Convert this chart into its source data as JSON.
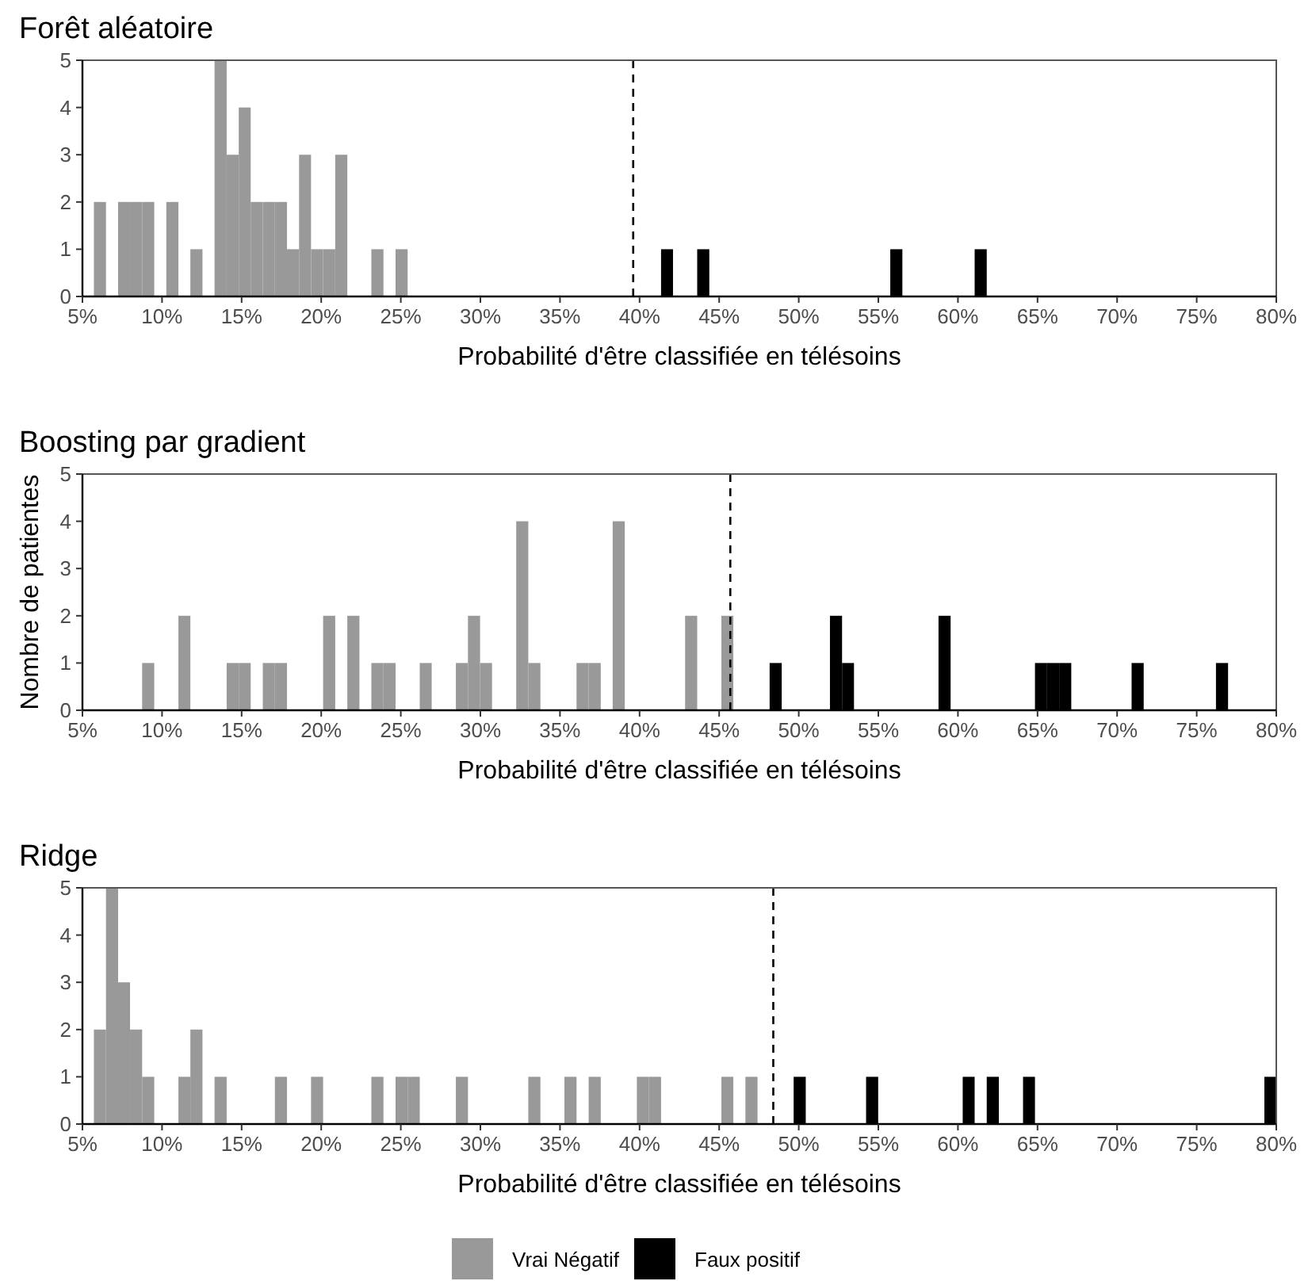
{
  "chart_data": [
    {
      "type": "histogram",
      "title": "Forêt aléatoire",
      "xlabel": "Probabilité d'être classifiée en télésoins",
      "bins": [
        5.72,
        6.48,
        7.24,
        7.99,
        8.75,
        9.51,
        10.27,
        11.03,
        11.78,
        12.54,
        13.3,
        14.06,
        14.82,
        15.57,
        16.33,
        17.09,
        17.85,
        18.61,
        19.36,
        20.12,
        20.88,
        21.64,
        22.4,
        23.15,
        23.91,
        24.67,
        25.43,
        26.19,
        26.94,
        27.7,
        28.46,
        29.22,
        29.98,
        30.73,
        31.49,
        32.25,
        33.01,
        33.77,
        34.52,
        35.28,
        36.04,
        36.8,
        37.56,
        38.31,
        39.07,
        39.83,
        40.59,
        41.35,
        42.1,
        42.86,
        43.62,
        44.38,
        45.14,
        45.89,
        46.65,
        47.41,
        48.17,
        48.93,
        49.68,
        50.44,
        51.2,
        51.96,
        52.72,
        53.47,
        54.23,
        54.99,
        55.75,
        56.51,
        57.26,
        58.02,
        58.78,
        59.54,
        60.3,
        61.05,
        61.81,
        62.57,
        63.33,
        64.09,
        64.84,
        65.6,
        66.36,
        67.12,
        67.88,
        68.63,
        69.39,
        70.15,
        70.91,
        71.67,
        72.42,
        73.18,
        73.94,
        74.7,
        75.46,
        76.21,
        76.97,
        77.73,
        78.49,
        79.25,
        80.0
      ],
      "series": [
        {
          "color": "#999999",
          "values": [
            2,
            0,
            2,
            2,
            2,
            0,
            2,
            0,
            1,
            0,
            5,
            3,
            4,
            2,
            2,
            2,
            1,
            3,
            1,
            1,
            3,
            0,
            0,
            1,
            0,
            1,
            0,
            0,
            0,
            0,
            0,
            0,
            0,
            0,
            0,
            0,
            0,
            0,
            0,
            0,
            0,
            0,
            0,
            0,
            0,
            0,
            0,
            0,
            0,
            0,
            0,
            0,
            0,
            0,
            0,
            0,
            0,
            0,
            0,
            0,
            0,
            0,
            0,
            0,
            0,
            0,
            0,
            0,
            0,
            0,
            0,
            0,
            0,
            0,
            0,
            0,
            0,
            0,
            0,
            0,
            0,
            0,
            0,
            0,
            0,
            0,
            0,
            0,
            0,
            0,
            0,
            0,
            0,
            0,
            0,
            0,
            0,
            0
          ]
        },
        {
          "color": "#000000",
          "values": [
            0,
            0,
            0,
            0,
            0,
            0,
            0,
            0,
            0,
            0,
            0,
            0,
            0,
            0,
            0,
            0,
            0,
            0,
            0,
            0,
            0,
            0,
            0,
            0,
            0,
            0,
            0,
            0,
            0,
            0,
            0,
            0,
            0,
            0,
            0,
            0,
            0,
            0,
            0,
            0,
            0,
            0,
            0,
            0,
            0,
            0,
            0,
            1,
            0,
            0,
            1,
            0,
            0,
            0,
            0,
            0,
            0,
            0,
            0,
            0,
            0,
            0,
            0,
            0,
            0,
            0,
            1,
            0,
            0,
            0,
            0,
            0,
            0,
            1,
            0,
            0,
            0,
            0,
            0,
            0,
            0,
            0,
            0,
            0,
            0,
            0,
            0,
            0,
            0,
            0,
            0,
            0,
            0,
            0,
            0,
            0,
            0,
            0
          ]
        }
      ],
      "xlim": [
        5,
        80
      ],
      "xticks": [
        {
          "value": 5,
          "label": "5%"
        },
        {
          "value": 10,
          "label": "10%"
        },
        {
          "value": 15,
          "label": "15%"
        },
        {
          "value": 20,
          "label": "20%"
        },
        {
          "value": 25,
          "label": "25%"
        },
        {
          "value": 30,
          "label": "30%"
        },
        {
          "value": 35,
          "label": "35%"
        },
        {
          "value": 40,
          "label": "40%"
        },
        {
          "value": 45,
          "label": "45%"
        },
        {
          "value": 50,
          "label": "50%"
        },
        {
          "value": 55,
          "label": "55%"
        },
        {
          "value": 60,
          "label": "60%"
        },
        {
          "value": 65,
          "label": "65%"
        },
        {
          "value": 70,
          "label": "70%"
        },
        {
          "value": 75,
          "label": "75%"
        },
        {
          "value": 80,
          "label": "80%"
        }
      ],
      "ylim": [
        0,
        5
      ],
      "yticks": [
        0,
        1,
        2,
        3,
        4,
        5
      ],
      "ref_lines": [
        {
          "axis": "x",
          "value": 39.6,
          "color": "#000000",
          "line_style": "dashed"
        }
      ],
      "grid": false,
      "legend": false
    },
    {
      "type": "histogram",
      "title": "Boosting par gradient",
      "xlabel": "Probabilité d'être classifiée en télésoins",
      "ylabel": "Nombre de patientes",
      "bins": [
        5.72,
        6.48,
        7.24,
        7.99,
        8.75,
        9.51,
        10.27,
        11.03,
        11.78,
        12.54,
        13.3,
        14.06,
        14.82,
        15.57,
        16.33,
        17.09,
        17.85,
        18.61,
        19.36,
        20.12,
        20.88,
        21.64,
        22.4,
        23.15,
        23.91,
        24.67,
        25.43,
        26.19,
        26.94,
        27.7,
        28.46,
        29.22,
        29.98,
        30.73,
        31.49,
        32.25,
        33.01,
        33.77,
        34.52,
        35.28,
        36.04,
        36.8,
        37.56,
        38.31,
        39.07,
        39.83,
        40.59,
        41.35,
        42.1,
        42.86,
        43.62,
        44.38,
        45.14,
        45.89,
        46.65,
        47.41,
        48.17,
        48.93,
        49.68,
        50.44,
        51.2,
        51.96,
        52.72,
        53.47,
        54.23,
        54.99,
        55.75,
        56.51,
        57.26,
        58.02,
        58.78,
        59.54,
        60.3,
        61.05,
        61.81,
        62.57,
        63.33,
        64.09,
        64.84,
        65.6,
        66.36,
        67.12,
        67.88,
        68.63,
        69.39,
        70.15,
        70.91,
        71.67,
        72.42,
        73.18,
        73.94,
        74.7,
        75.46,
        76.21,
        76.97,
        77.73,
        78.49,
        79.25,
        80.0
      ],
      "series": [
        {
          "color": "#999999",
          "values": [
            0,
            0,
            0,
            0,
            1,
            0,
            0,
            2,
            0,
            0,
            0,
            1,
            1,
            0,
            1,
            1,
            0,
            0,
            0,
            2,
            0,
            2,
            0,
            1,
            1,
            0,
            0,
            1,
            0,
            0,
            1,
            2,
            1,
            0,
            0,
            4,
            1,
            0,
            0,
            0,
            1,
            1,
            0,
            4,
            0,
            0,
            0,
            0,
            0,
            2,
            0,
            0,
            2,
            0,
            0,
            0,
            0,
            0,
            0,
            0,
            0,
            0,
            0,
            0,
            0,
            0,
            0,
            0,
            0,
            0,
            0,
            0,
            0,
            0,
            0,
            0,
            0,
            0,
            0,
            0,
            0,
            0,
            0,
            0,
            0,
            0,
            0,
            0,
            0,
            0,
            0,
            0,
            0,
            0,
            0,
            0,
            0,
            0
          ]
        },
        {
          "color": "#000000",
          "values": [
            0,
            0,
            0,
            0,
            0,
            0,
            0,
            0,
            0,
            0,
            0,
            0,
            0,
            0,
            0,
            0,
            0,
            0,
            0,
            0,
            0,
            0,
            0,
            0,
            0,
            0,
            0,
            0,
            0,
            0,
            0,
            0,
            0,
            0,
            0,
            0,
            0,
            0,
            0,
            0,
            0,
            0,
            0,
            0,
            0,
            0,
            0,
            0,
            0,
            0,
            0,
            0,
            0,
            0,
            0,
            0,
            1,
            0,
            0,
            0,
            0,
            2,
            1,
            0,
            0,
            0,
            0,
            0,
            0,
            0,
            2,
            0,
            0,
            0,
            0,
            0,
            0,
            0,
            1,
            1,
            1,
            0,
            0,
            0,
            0,
            0,
            1,
            0,
            0,
            0,
            0,
            0,
            0,
            1,
            0,
            0,
            0,
            0
          ]
        }
      ],
      "xlim": [
        5,
        80
      ],
      "xticks": [
        {
          "value": 5,
          "label": "5%"
        },
        {
          "value": 10,
          "label": "10%"
        },
        {
          "value": 15,
          "label": "15%"
        },
        {
          "value": 20,
          "label": "20%"
        },
        {
          "value": 25,
          "label": "25%"
        },
        {
          "value": 30,
          "label": "30%"
        },
        {
          "value": 35,
          "label": "35%"
        },
        {
          "value": 40,
          "label": "40%"
        },
        {
          "value": 45,
          "label": "45%"
        },
        {
          "value": 50,
          "label": "50%"
        },
        {
          "value": 55,
          "label": "55%"
        },
        {
          "value": 60,
          "label": "60%"
        },
        {
          "value": 65,
          "label": "65%"
        },
        {
          "value": 70,
          "label": "70%"
        },
        {
          "value": 75,
          "label": "75%"
        },
        {
          "value": 80,
          "label": "80%"
        }
      ],
      "ylim": [
        0,
        5
      ],
      "yticks": [
        0,
        1,
        2,
        3,
        4,
        5
      ],
      "ref_lines": [
        {
          "axis": "x",
          "value": 45.7,
          "color": "#000000",
          "line_style": "dashed"
        }
      ],
      "grid": false,
      "legend": false
    },
    {
      "type": "histogram",
      "title": "Ridge",
      "xlabel": "Probabilité d'être classifiée en télésoins",
      "bins": [
        5.72,
        6.48,
        7.24,
        7.99,
        8.75,
        9.51,
        10.27,
        11.03,
        11.78,
        12.54,
        13.3,
        14.06,
        14.82,
        15.57,
        16.33,
        17.09,
        17.85,
        18.61,
        19.36,
        20.12,
        20.88,
        21.64,
        22.4,
        23.15,
        23.91,
        24.67,
        25.43,
        26.19,
        26.94,
        27.7,
        28.46,
        29.22,
        29.98,
        30.73,
        31.49,
        32.25,
        33.01,
        33.77,
        34.52,
        35.28,
        36.04,
        36.8,
        37.56,
        38.31,
        39.07,
        39.83,
        40.59,
        41.35,
        42.1,
        42.86,
        43.62,
        44.38,
        45.14,
        45.89,
        46.65,
        47.41,
        48.17,
        48.93,
        49.68,
        50.44,
        51.2,
        51.96,
        52.72,
        53.47,
        54.23,
        54.99,
        55.75,
        56.51,
        57.26,
        58.02,
        58.78,
        59.54,
        60.3,
        61.05,
        61.81,
        62.57,
        63.33,
        64.09,
        64.84,
        65.6,
        66.36,
        67.12,
        67.88,
        68.63,
        69.39,
        70.15,
        70.91,
        71.67,
        72.42,
        73.18,
        73.94,
        74.7,
        75.46,
        76.21,
        76.97,
        77.73,
        78.49,
        79.25,
        80.0
      ],
      "series": [
        {
          "name": "Vrai Négatif",
          "color": "#999999",
          "values": [
            2,
            5,
            3,
            2,
            1,
            0,
            0,
            1,
            2,
            0,
            1,
            0,
            0,
            0,
            0,
            1,
            0,
            0,
            1,
            0,
            0,
            0,
            0,
            1,
            0,
            1,
            1,
            0,
            0,
            0,
            1,
            0,
            0,
            0,
            0,
            0,
            1,
            0,
            0,
            1,
            0,
            1,
            0,
            0,
            0,
            1,
            1,
            0,
            0,
            0,
            0,
            0,
            1,
            0,
            1,
            0,
            0,
            0,
            0,
            0,
            0,
            0,
            0,
            0,
            0,
            0,
            0,
            0,
            0,
            0,
            0,
            0,
            0,
            0,
            0,
            0,
            0,
            0,
            0,
            0,
            0,
            0,
            0,
            0,
            0,
            0,
            0,
            0,
            0,
            0,
            0,
            0,
            0,
            0,
            0,
            0,
            0,
            0
          ]
        },
        {
          "name": "Faux positif",
          "color": "#000000",
          "values": [
            0,
            0,
            0,
            0,
            0,
            0,
            0,
            0,
            0,
            0,
            0,
            0,
            0,
            0,
            0,
            0,
            0,
            0,
            0,
            0,
            0,
            0,
            0,
            0,
            0,
            0,
            0,
            0,
            0,
            0,
            0,
            0,
            0,
            0,
            0,
            0,
            0,
            0,
            0,
            0,
            0,
            0,
            0,
            0,
            0,
            0,
            0,
            0,
            0,
            0,
            0,
            0,
            0,
            0,
            0,
            0,
            0,
            0,
            1,
            0,
            0,
            0,
            0,
            0,
            1,
            0,
            0,
            0,
            0,
            0,
            0,
            0,
            1,
            0,
            1,
            0,
            0,
            1,
            0,
            0,
            0,
            0,
            0,
            0,
            0,
            0,
            0,
            0,
            0,
            0,
            0,
            0,
            0,
            0,
            0,
            0,
            0,
            1
          ]
        }
      ],
      "xlim": [
        5,
        80
      ],
      "xticks": [
        {
          "value": 5,
          "label": "5%"
        },
        {
          "value": 10,
          "label": "10%"
        },
        {
          "value": 15,
          "label": "15%"
        },
        {
          "value": 20,
          "label": "20%"
        },
        {
          "value": 25,
          "label": "25%"
        },
        {
          "value": 30,
          "label": "30%"
        },
        {
          "value": 35,
          "label": "35%"
        },
        {
          "value": 40,
          "label": "40%"
        },
        {
          "value": 45,
          "label": "45%"
        },
        {
          "value": 50,
          "label": "50%"
        },
        {
          "value": 55,
          "label": "55%"
        },
        {
          "value": 60,
          "label": "60%"
        },
        {
          "value": 65,
          "label": "65%"
        },
        {
          "value": 70,
          "label": "70%"
        },
        {
          "value": 75,
          "label": "75%"
        },
        {
          "value": 80,
          "label": "80%"
        }
      ],
      "ylim": [
        0,
        5
      ],
      "yticks": [
        0,
        1,
        2,
        3,
        4,
        5
      ],
      "ref_lines": [
        {
          "axis": "x",
          "value": 48.4,
          "color": "#000000",
          "line_style": "dashed"
        }
      ],
      "grid": false,
      "legend": "bottom"
    }
  ]
}
